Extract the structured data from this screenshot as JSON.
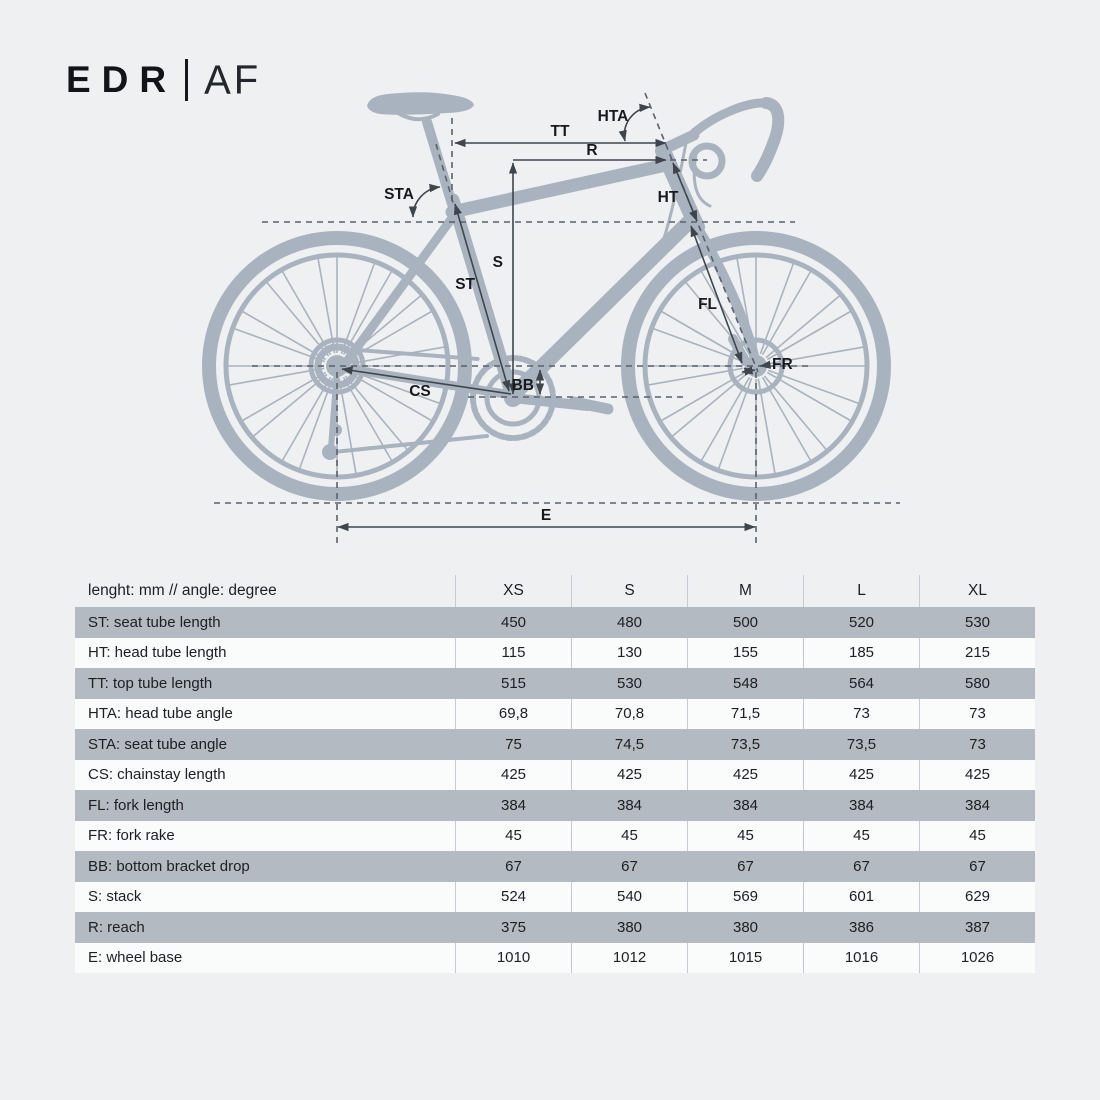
{
  "logo": {
    "brand": "EDR",
    "model": "AF"
  },
  "diagram": {
    "labels": {
      "tt": "TT",
      "r": "R",
      "hta": "HTA",
      "sta": "STA",
      "ht": "HT",
      "s": "S",
      "st": "ST",
      "cs": "CS",
      "bb": "BB",
      "fl": "FL",
      "fr": "FR",
      "e": "E"
    }
  },
  "table": {
    "unit_header": "lenght: mm // angle: degree",
    "sizes": [
      "XS",
      "S",
      "M",
      "L",
      "XL"
    ],
    "rows": [
      {
        "label": "ST: seat tube length",
        "values": [
          "450",
          "480",
          "500",
          "520",
          "530"
        ]
      },
      {
        "label": "HT: head tube length",
        "values": [
          "115",
          "130",
          "155",
          "185",
          "215"
        ]
      },
      {
        "label": "TT: top tube length",
        "values": [
          "515",
          "530",
          "548",
          "564",
          "580"
        ]
      },
      {
        "label": "HTA: head tube angle",
        "values": [
          "69,8",
          "70,8",
          "71,5",
          "73",
          "73"
        ]
      },
      {
        "label": "STA: seat tube angle",
        "values": [
          "75",
          "74,5",
          "73,5",
          "73,5",
          "73"
        ]
      },
      {
        "label": "CS: chainstay length",
        "values": [
          "425",
          "425",
          "425",
          "425",
          "425"
        ]
      },
      {
        "label": "FL: fork length",
        "values": [
          "384",
          "384",
          "384",
          "384",
          "384"
        ]
      },
      {
        "label": "FR: fork rake",
        "values": [
          "45",
          "45",
          "45",
          "45",
          "45"
        ]
      },
      {
        "label": "BB: bottom bracket drop",
        "values": [
          "67",
          "67",
          "67",
          "67",
          "67"
        ]
      },
      {
        "label": "S: stack",
        "values": [
          "524",
          "540",
          "569",
          "601",
          "629"
        ]
      },
      {
        "label": "R: reach",
        "values": [
          "375",
          "380",
          "380",
          "386",
          "387"
        ]
      },
      {
        "label": "E: wheel base",
        "values": [
          "1010",
          "1012",
          "1015",
          "1016",
          "1026"
        ]
      }
    ]
  },
  "colors": {
    "background": "#eff0f1",
    "bike_silhouette": "#a9b3bf",
    "shaded_row": "#b4bac1",
    "dimension_line": "#3f454c"
  }
}
